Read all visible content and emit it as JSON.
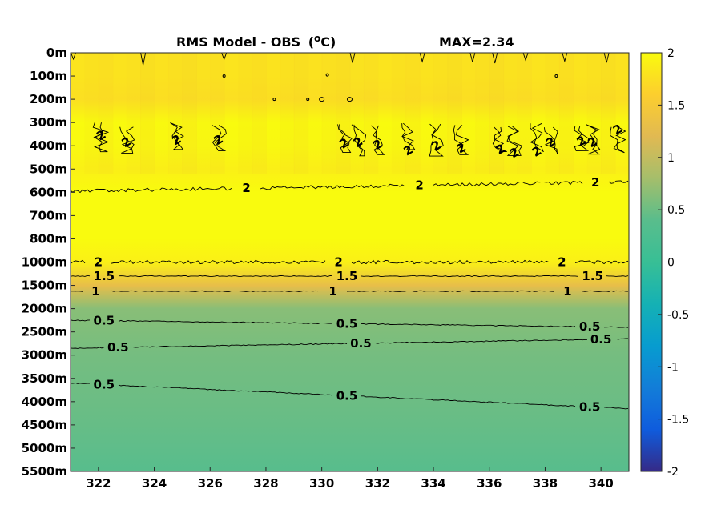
{
  "chart_data": {
    "type": "heatmap",
    "title": "RMS Model - OBS",
    "title_unit_prefix": "(",
    "title_unit_sup": "o",
    "title_unit_suffix": "C)",
    "max_label": "MAX=2.34",
    "xlim": [
      321,
      341
    ],
    "xticks": [
      "322",
      "324",
      "326",
      "328",
      "330",
      "332",
      "334",
      "336",
      "338",
      "340"
    ],
    "yticks": [
      "0m",
      "100m",
      "200m",
      "300m",
      "400m",
      "500m",
      "600m",
      "700m",
      "800m",
      "1000m",
      "1500m",
      "2000m",
      "2500m",
      "3000m",
      "3500m",
      "4000m",
      "4500m",
      "5000m",
      "5500m"
    ],
    "clim": [
      -2,
      2
    ],
    "colorbar_ticks": [
      "2",
      "1.5",
      "1",
      "0.5",
      "0",
      "-0.5",
      "-1",
      "-1.5",
      "-2"
    ],
    "colormap": "parula",
    "grid": false,
    "level_profile": [
      {
        "depth": "0m",
        "value": 1.8
      },
      {
        "depth": "100m",
        "value": 1.8
      },
      {
        "depth": "200m",
        "value": 1.75
      },
      {
        "depth": "300m",
        "value": 2.0
      },
      {
        "depth": "400m",
        "value": 1.98
      },
      {
        "depth": "500m",
        "value": 1.9
      },
      {
        "depth": "600m",
        "value": 2.0
      },
      {
        "depth": "700m",
        "value": 2.1
      },
      {
        "depth": "800m",
        "value": 2.05
      },
      {
        "depth": "1000m",
        "value": 1.9
      },
      {
        "depth": "1500m",
        "value": 1.3
      },
      {
        "depth": "2000m",
        "value": 0.65
      },
      {
        "depth": "2500m",
        "value": 0.6
      },
      {
        "depth": "3000m",
        "value": 0.55
      },
      {
        "depth": "3500m",
        "value": 0.52
      },
      {
        "depth": "4000m",
        "value": 0.5
      },
      {
        "depth": "4500m",
        "value": 0.47
      },
      {
        "depth": "5000m",
        "value": 0.43
      },
      {
        "depth": "5500m",
        "value": 0.38
      }
    ],
    "contours": [
      {
        "level": "2",
        "start": [
          321,
          5.95
        ],
        "end": [
          341,
          5.55
        ],
        "labels": [
          {
            "x": 327.3,
            "text": "2"
          },
          {
            "x": 333.5,
            "text": "2"
          },
          {
            "x": 339.8,
            "text": "2"
          }
        ]
      },
      {
        "level": "2",
        "start": [
          321,
          9.0
        ],
        "end": [
          341,
          9.0
        ],
        "labels": [
          {
            "x": 322.0,
            "text": "2"
          },
          {
            "x": 330.6,
            "text": "2"
          },
          {
            "x": 338.6,
            "text": "2"
          }
        ]
      },
      {
        "level": "1.5",
        "start": [
          321,
          9.6
        ],
        "end": [
          341,
          9.6
        ],
        "labels": [
          {
            "x": 322.2,
            "text": "1.5"
          },
          {
            "x": 330.9,
            "text": "1.5"
          },
          {
            "x": 339.7,
            "text": "1.5"
          }
        ]
      },
      {
        "level": "1",
        "start": [
          321,
          10.25
        ],
        "end": [
          341,
          10.25
        ],
        "labels": [
          {
            "x": 321.9,
            "text": "1"
          },
          {
            "x": 330.4,
            "text": "1"
          },
          {
            "x": 338.8,
            "text": "1"
          }
        ]
      },
      {
        "level": "0.5",
        "start": [
          321,
          11.5
        ],
        "end": [
          341,
          11.8
        ],
        "labels": [
          {
            "x": 322.2,
            "text": "0.5"
          },
          {
            "x": 330.9,
            "text": "0.5"
          },
          {
            "x": 339.6,
            "text": "0.5"
          }
        ]
      },
      {
        "level": "0.5",
        "start": [
          321,
          12.7
        ],
        "end": [
          341,
          12.3
        ],
        "labels": [
          {
            "x": 322.7,
            "text": "0.5"
          },
          {
            "x": 331.4,
            "text": "0.5"
          },
          {
            "x": 340.0,
            "text": "0.5"
          }
        ]
      },
      {
        "level": "0.5",
        "start": [
          321,
          14.2
        ],
        "end": [
          341,
          15.3
        ],
        "labels": [
          {
            "x": 322.2,
            "text": "0.5"
          },
          {
            "x": 330.9,
            "text": "0.5"
          },
          {
            "x": 339.6,
            "text": "0.5"
          }
        ]
      }
    ],
    "noisy_band": {
      "level": "2",
      "labels": [
        {
          "x": 322.1,
          "y": 3.55,
          "text": "2"
        },
        {
          "x": 323.0,
          "y": 3.85,
          "text": "2"
        },
        {
          "x": 324.8,
          "y": 3.75,
          "text": "2"
        },
        {
          "x": 326.3,
          "y": 3.75,
          "text": "2"
        },
        {
          "x": 330.8,
          "y": 3.9,
          "text": "2"
        },
        {
          "x": 331.3,
          "y": 3.85,
          "text": "2"
        },
        {
          "x": 332.0,
          "y": 3.95,
          "text": "2"
        },
        {
          "x": 333.1,
          "y": 4.2,
          "text": "2"
        },
        {
          "x": 334.1,
          "y": 4.0,
          "text": "2"
        },
        {
          "x": 335.0,
          "y": 4.1,
          "text": "2"
        },
        {
          "x": 336.4,
          "y": 4.15,
          "text": "2"
        },
        {
          "x": 336.9,
          "y": 4.3,
          "text": "2"
        },
        {
          "x": 337.7,
          "y": 4.25,
          "text": "2"
        },
        {
          "x": 338.2,
          "y": 3.85,
          "text": "2"
        },
        {
          "x": 339.3,
          "y": 3.8,
          "text": "2"
        },
        {
          "x": 339.7,
          "y": 3.85,
          "text": "2"
        },
        {
          "x": 340.6,
          "y": 3.3,
          "text": "2"
        }
      ]
    }
  }
}
